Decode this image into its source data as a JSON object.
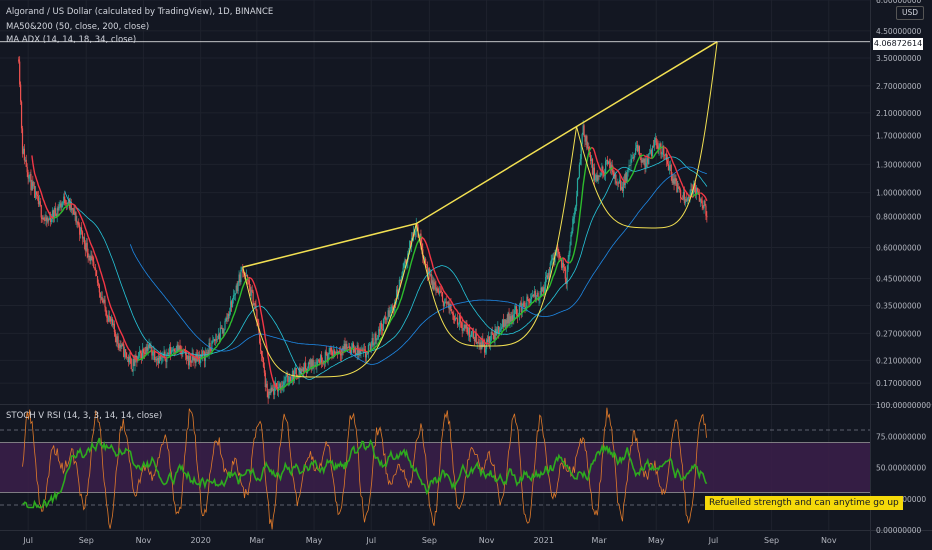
{
  "header": {
    "title": "Algorand / US Dollar (calculated by TradingView), 1D, BINANCE",
    "indicator1": "MA50&200 (50, close, 200, close)",
    "indicator2": "MA ADX (14, 14, 18, 34, close)",
    "unit": "USD"
  },
  "price_marker": "4.06872614",
  "oscillator": {
    "title": "STOCH V RSI (14, 3, 3, 14, 14, close)"
  },
  "annotation": "Refuelled strength and can anytime go up",
  "colors": {
    "background": "#131722",
    "pattern_lines": "#f2e052",
    "stoch_line": "#2eaa1f",
    "rsi_line": "#e07a2a",
    "ma_fast": "#2dbc2d",
    "ma_slow": "#f23645",
    "ma_long": "#1e88e5",
    "ma_teal": "#26c6da",
    "band_fill": "#3b1f4a",
    "note_bg": "#f5d90a"
  },
  "chart_data": {
    "type": "candlestick",
    "y_scale": "log",
    "ylim": [
      0.14,
      6.0
    ],
    "y_ticks": [
      "6.00000000",
      "4.50000000",
      "3.50000000",
      "2.70000000",
      "2.10000000",
      "1.70000000",
      "1.30000000",
      "1.00000000",
      "0.80000000",
      "0.60000000",
      "0.45000000",
      "0.35000000",
      "0.27000000",
      "0.21000000",
      "0.17000000"
    ],
    "x_ticks": [
      "Jul",
      "Sep",
      "Nov",
      "2020",
      "Mar",
      "May",
      "Jul",
      "Sep",
      "Nov",
      "2021",
      "Mar",
      "May",
      "Jul",
      "Sep",
      "Nov"
    ],
    "x_tick_dates": [
      "2019-07-01",
      "2019-09-01",
      "2019-11-01",
      "2020-01-01",
      "2020-03-01",
      "2020-05-01",
      "2020-07-01",
      "2020-09-01",
      "2020-11-01",
      "2021-01-01",
      "2021-03-01",
      "2021-05-01",
      "2021-07-01",
      "2021-09-01",
      "2021-11-01"
    ],
    "trendline": [
      [
        "2020-02-15",
        0.5
      ],
      [
        "2020-08-18",
        0.75
      ],
      [
        "2021-02-05",
        1.85
      ],
      [
        "2021-07-05",
        4.07
      ]
    ],
    "cup_arcs": [
      {
        "from": [
          "2020-02-15",
          0.5
        ],
        "bottom": [
          "2020-05-01",
          0.18
        ],
        "to": [
          "2020-08-18",
          0.75
        ]
      },
      {
        "from": [
          "2020-08-18",
          0.75
        ],
        "bottom": [
          "2020-11-01",
          0.24
        ],
        "to": [
          "2021-02-05",
          1.85
        ]
      },
      {
        "from": [
          "2021-02-05",
          1.85
        ],
        "bottom": [
          "2021-04-26",
          0.72
        ],
        "to": [
          "2021-07-05",
          4.07
        ]
      }
    ],
    "price_path": [
      [
        "2019-06-21",
        3.6
      ],
      [
        "2019-06-25",
        1.5
      ],
      [
        "2019-07-05",
        1.05
      ],
      [
        "2019-07-20",
        0.75
      ],
      [
        "2019-08-10",
        0.95
      ],
      [
        "2019-08-20",
        0.8
      ],
      [
        "2019-09-05",
        0.55
      ],
      [
        "2019-09-20",
        0.35
      ],
      [
        "2019-10-05",
        0.25
      ],
      [
        "2019-10-20",
        0.2
      ],
      [
        "2019-11-05",
        0.24
      ],
      [
        "2019-11-20",
        0.21
      ],
      [
        "2019-12-05",
        0.24
      ],
      [
        "2019-12-20",
        0.21
      ],
      [
        "2020-01-05",
        0.22
      ],
      [
        "2020-01-25",
        0.28
      ],
      [
        "2020-02-15",
        0.5
      ],
      [
        "2020-02-28",
        0.35
      ],
      [
        "2020-03-12",
        0.15
      ],
      [
        "2020-03-20",
        0.16
      ],
      [
        "2020-04-05",
        0.18
      ],
      [
        "2020-04-25",
        0.2
      ],
      [
        "2020-05-15",
        0.22
      ],
      [
        "2020-06-05",
        0.24
      ],
      [
        "2020-06-25",
        0.22
      ],
      [
        "2020-07-10",
        0.28
      ],
      [
        "2020-07-25",
        0.35
      ],
      [
        "2020-08-05",
        0.5
      ],
      [
        "2020-08-18",
        0.75
      ],
      [
        "2020-09-01",
        0.45
      ],
      [
        "2020-09-20",
        0.35
      ],
      [
        "2020-10-10",
        0.28
      ],
      [
        "2020-10-30",
        0.24
      ],
      [
        "2020-11-20",
        0.3
      ],
      [
        "2020-12-10",
        0.35
      ],
      [
        "2020-12-31",
        0.4
      ],
      [
        "2021-01-15",
        0.6
      ],
      [
        "2021-01-25",
        0.45
      ],
      [
        "2021-02-05",
        1.0
      ],
      [
        "2021-02-12",
        1.85
      ],
      [
        "2021-02-25",
        1.1
      ],
      [
        "2021-03-10",
        1.3
      ],
      [
        "2021-03-25",
        1.05
      ],
      [
        "2021-04-10",
        1.5
      ],
      [
        "2021-04-20",
        1.3
      ],
      [
        "2021-05-01",
        1.6
      ],
      [
        "2021-05-10",
        1.45
      ],
      [
        "2021-05-20",
        1.1
      ],
      [
        "2021-06-01",
        0.95
      ],
      [
        "2021-06-10",
        1.05
      ],
      [
        "2021-06-20",
        0.9
      ],
      [
        "2021-06-24",
        0.8
      ]
    ],
    "oscillator": {
      "ylim": [
        0,
        100
      ],
      "y_ticks": [
        "100.00000000",
        "75.00000000",
        "50.00000000",
        "25.00000000",
        "0.00000000"
      ],
      "upper_dashed": 80,
      "lower_dashed": 20,
      "band": [
        30,
        70
      ]
    }
  }
}
